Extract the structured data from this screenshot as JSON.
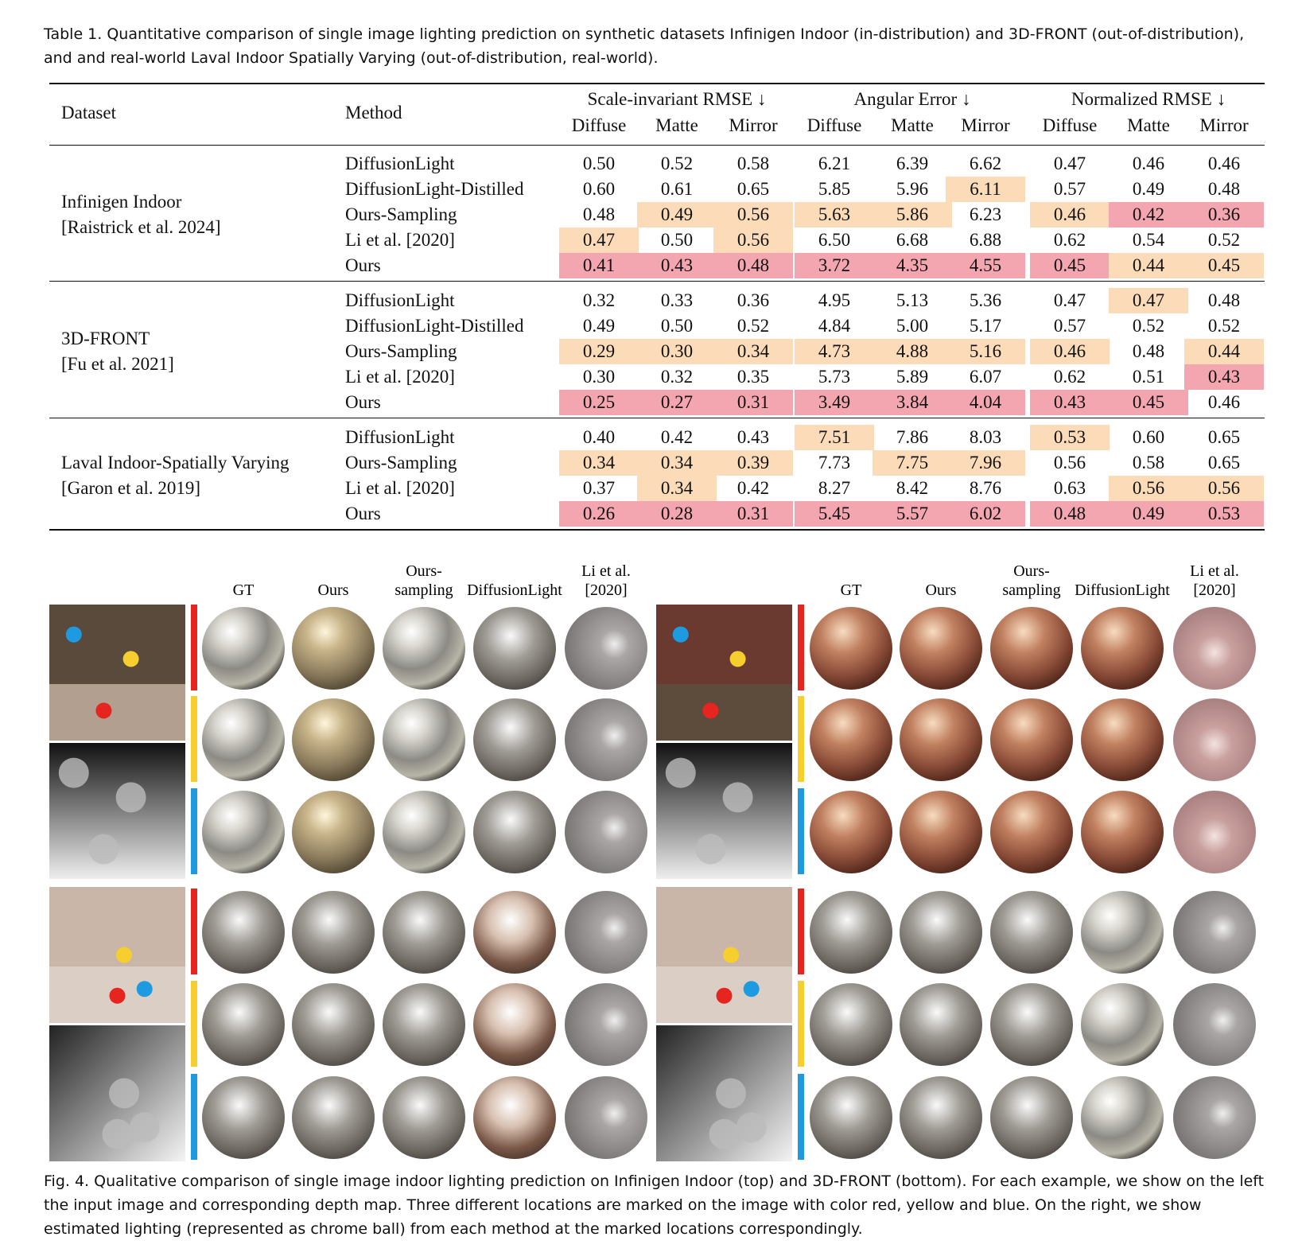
{
  "table": {
    "caption": "Table 1.  Quantitative comparison of single image lighting prediction on synthetic datasets Infinigen Indoor (in-distribution) and 3D-FRONT (out-of-distribution), and and real-world Laval Indoor Spatially Varying (out-of-distribution, real-world).",
    "col_dataset": "Dataset",
    "col_method": "Method",
    "metric_groups": [
      "Scale-invariant RMSE ↓",
      "Angular Error ↓",
      "Normalized RMSE ↓"
    ],
    "subcolumns": [
      "Diffuse",
      "Matte",
      "Mirror",
      "Diffuse",
      "Matte",
      "Mirror",
      "Diffuse",
      "Matte",
      "Mirror"
    ],
    "groups": [
      {
        "dataset": [
          "Infinigen Indoor",
          "[Raistrick et al. 2024]"
        ],
        "rows": [
          {
            "method": "DiffusionLight",
            "values": [
              "0.50",
              "0.52",
              "0.58",
              "6.21",
              "6.39",
              "6.62",
              "0.47",
              "0.46",
              "0.46"
            ],
            "bg": [
              null,
              null,
              null,
              null,
              null,
              null,
              null,
              null,
              null
            ]
          },
          {
            "method": "DiffusionLight-Distilled",
            "values": [
              "0.60",
              "0.61",
              "0.65",
              "5.85",
              "5.96",
              "6.11",
              "0.57",
              "0.49",
              "0.48"
            ],
            "bg": [
              null,
              null,
              null,
              null,
              null,
              "#fcdcb8",
              null,
              null,
              null
            ]
          },
          {
            "method": "Ours-Sampling",
            "values": [
              "0.48",
              "0.49",
              "0.56",
              "5.63",
              "5.86",
              "6.23",
              "0.46",
              "0.42",
              "0.36"
            ],
            "bg": [
              null,
              "#fcdcb8",
              "#fcdcb8",
              "#fcdcb8",
              "#fcdcb8",
              null,
              "#fcdcb8",
              "#f4a6b0",
              "#f4a6b0"
            ]
          },
          {
            "method": "Li et al. [2020]",
            "values": [
              "0.47",
              "0.50",
              "0.56",
              "6.50",
              "6.68",
              "6.88",
              "0.62",
              "0.54",
              "0.52"
            ],
            "bg": [
              "#fcdcb8",
              null,
              "#fcdcb8",
              null,
              null,
              null,
              null,
              null,
              null
            ]
          },
          {
            "method": "Ours",
            "values": [
              "0.41",
              "0.43",
              "0.48",
              "3.72",
              "4.35",
              "4.55",
              "0.45",
              "0.44",
              "0.45"
            ],
            "bg": [
              "#f4a6b0",
              "#f4a6b0",
              "#f4a6b0",
              "#f4a6b0",
              "#f4a6b0",
              "#f4a6b0",
              "#f4a6b0",
              "#fcdcb8",
              "#fcdcb8"
            ]
          }
        ]
      },
      {
        "dataset": [
          "3D-FRONT",
          "[Fu et al. 2021]"
        ],
        "rows": [
          {
            "method": "DiffusionLight",
            "values": [
              "0.32",
              "0.33",
              "0.36",
              "4.95",
              "5.13",
              "5.36",
              "0.47",
              "0.47",
              "0.48"
            ],
            "bg": [
              null,
              null,
              null,
              null,
              null,
              null,
              null,
              "#fcdcb8",
              null
            ]
          },
          {
            "method": "DiffusionLight-Distilled",
            "values": [
              "0.49",
              "0.50",
              "0.52",
              "4.84",
              "5.00",
              "5.17",
              "0.57",
              "0.52",
              "0.52"
            ],
            "bg": [
              null,
              null,
              null,
              null,
              null,
              null,
              null,
              null,
              null
            ]
          },
          {
            "method": "Ours-Sampling",
            "values": [
              "0.29",
              "0.30",
              "0.34",
              "4.73",
              "4.88",
              "5.16",
              "0.46",
              "0.48",
              "0.44"
            ],
            "bg": [
              "#fcdcb8",
              "#fcdcb8",
              "#fcdcb8",
              "#fcdcb8",
              "#fcdcb8",
              "#fcdcb8",
              "#fcdcb8",
              null,
              "#fcdcb8"
            ]
          },
          {
            "method": "Li et al. [2020]",
            "values": [
              "0.30",
              "0.32",
              "0.35",
              "5.73",
              "5.89",
              "6.07",
              "0.62",
              "0.51",
              "0.43"
            ],
            "bg": [
              null,
              null,
              null,
              null,
              null,
              null,
              null,
              null,
              "#f4a6b0"
            ]
          },
          {
            "method": "Ours",
            "values": [
              "0.25",
              "0.27",
              "0.31",
              "3.49",
              "3.84",
              "4.04",
              "0.43",
              "0.45",
              "0.46"
            ],
            "bg": [
              "#f4a6b0",
              "#f4a6b0",
              "#f4a6b0",
              "#f4a6b0",
              "#f4a6b0",
              "#f4a6b0",
              "#f4a6b0",
              "#f4a6b0",
              null
            ]
          }
        ]
      },
      {
        "dataset": [
          "Laval Indoor-Spatially Varying",
          "[Garon et al. 2019]"
        ],
        "rows": [
          {
            "method": "DiffusionLight",
            "values": [
              "0.40",
              "0.42",
              "0.43",
              "7.51",
              "7.86",
              "8.03",
              "0.53",
              "0.60",
              "0.65"
            ],
            "bg": [
              null,
              null,
              null,
              "#fcdcb8",
              null,
              null,
              "#fcdcb8",
              null,
              null
            ]
          },
          {
            "method": "Ours-Sampling",
            "values": [
              "0.34",
              "0.34",
              "0.39",
              "7.73",
              "7.75",
              "7.96",
              "0.56",
              "0.58",
              "0.65"
            ],
            "bg": [
              "#fcdcb8",
              "#fcdcb8",
              "#fcdcb8",
              null,
              "#fcdcb8",
              "#fcdcb8",
              null,
              null,
              null
            ]
          },
          {
            "method": "Li et al. [2020]",
            "values": [
              "0.37",
              "0.34",
              "0.42",
              "8.27",
              "8.42",
              "8.76",
              "0.63",
              "0.56",
              "0.56"
            ],
            "bg": [
              null,
              "#fcdcb8",
              null,
              null,
              null,
              null,
              null,
              "#fcdcb8",
              "#fcdcb8"
            ]
          },
          {
            "method": "Ours",
            "values": [
              "0.26",
              "0.28",
              "0.31",
              "5.45",
              "5.57",
              "6.02",
              "0.48",
              "0.49",
              "0.53"
            ],
            "bg": [
              "#f4a6b0",
              "#f4a6b0",
              "#f4a6b0",
              "#f4a6b0",
              "#f4a6b0",
              "#f4a6b0",
              "#f4a6b0",
              "#f4a6b0",
              "#f4a6b0"
            ]
          }
        ]
      }
    ]
  },
  "figure": {
    "panels": [
      {
        "headers": [
          [
            "GT"
          ],
          [
            "Ours"
          ],
          [
            "Ours-",
            "sampling"
          ],
          [
            "DiffusionLight"
          ],
          [
            "Li et al.",
            "[2020]"
          ]
        ]
      },
      {
        "headers": [
          [
            "GT"
          ],
          [
            "Ours"
          ],
          [
            "Ours-",
            "sampling"
          ],
          [
            "DiffusionLight"
          ],
          [
            "Li et al.",
            "[2020]"
          ]
        ]
      }
    ],
    "caption": "Fig. 4.  Qualitative comparison of single image indoor lighting prediction on Infinigen Indoor (top) and 3D-FRONT (bottom). For each example, we show on the left the input image and corresponding depth map. Three different locations are marked on the image with color red, yellow and blue. On the right, we show estimated lighting (represented as chrome ball) from each method at the marked locations correspondingly."
  }
}
